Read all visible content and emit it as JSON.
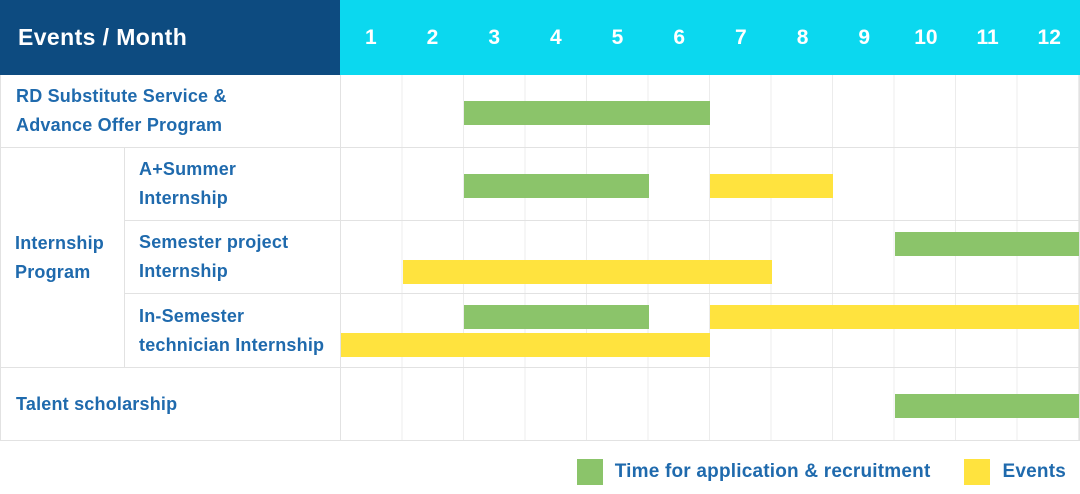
{
  "header": {
    "title": "Events / Month"
  },
  "colors": {
    "header_bg": "#0D4B80",
    "months_bg": "#0BD8EF",
    "green": "#8BC46A",
    "yellow": "#FFE33E",
    "text_blue": "#1F6AAD",
    "grid_line": "#ECECEC",
    "cell_border": "#E2E2E2"
  },
  "legend": {
    "items": [
      {
        "label": "Time for application & recruitment",
        "color_key": "green"
      },
      {
        "label": "Events",
        "color_key": "yellow"
      }
    ]
  },
  "chart_data": {
    "type": "bar",
    "subtype": "gantt-month-timeline",
    "title": "Events / Month",
    "x_axis": {
      "unit": "month",
      "ticks": [
        1,
        2,
        3,
        4,
        5,
        6,
        7,
        8,
        9,
        10,
        11,
        12
      ],
      "range": [
        1,
        12
      ]
    },
    "legend": [
      {
        "name": "Time for application & recruitment",
        "color": "#8BC46A"
      },
      {
        "name": "Events",
        "color": "#FFE33E"
      }
    ],
    "group_label": "Internship Program",
    "group_label_lines": [
      "Internship",
      "Program"
    ],
    "rows": [
      {
        "label": "RD Substitute Service & Advance Offer Program",
        "label_lines": [
          "RD Substitute Service &",
          "Advance Offer Program"
        ],
        "group": null,
        "bars": [
          {
            "series": "Time for application & recruitment",
            "color_key": "green",
            "start_month": 3,
            "end_month": 6,
            "lane": "single"
          }
        ]
      },
      {
        "label": "A+Summer Internship",
        "label_lines": [
          "A+Summer",
          "Internship"
        ],
        "group": "Internship Program",
        "bars": [
          {
            "series": "Time for application & recruitment",
            "color_key": "green",
            "start_month": 3,
            "end_month": 5,
            "lane": "single"
          },
          {
            "series": "Events",
            "color_key": "yellow",
            "start_month": 7,
            "end_month": 8,
            "lane": "single"
          }
        ]
      },
      {
        "label": "Semester project Internship",
        "label_lines": [
          "Semester project",
          "Internship"
        ],
        "group": "Internship Program",
        "bars": [
          {
            "series": "Time for application & recruitment",
            "color_key": "green",
            "start_month": 10,
            "end_month": 12,
            "lane": "top"
          },
          {
            "series": "Events",
            "color_key": "yellow",
            "start_month": 2,
            "end_month": 7,
            "lane": "bottom"
          }
        ]
      },
      {
        "label": "In-Semester technician Internship",
        "label_lines": [
          "In-Semester",
          "technician Internship"
        ],
        "group": "Internship Program",
        "bars": [
          {
            "series": "Time for application & recruitment",
            "color_key": "green",
            "start_month": 3,
            "end_month": 5,
            "lane": "top"
          },
          {
            "series": "Events",
            "color_key": "yellow",
            "start_month": 7,
            "end_month": 12,
            "lane": "top"
          },
          {
            "series": "Events",
            "color_key": "yellow",
            "start_month": 1,
            "end_month": 6,
            "lane": "bottom"
          }
        ]
      },
      {
        "label": "Talent scholarship",
        "label_lines": [
          "Talent scholarship"
        ],
        "group": null,
        "bars": [
          {
            "series": "Time for application & recruitment",
            "color_key": "green",
            "start_month": 10,
            "end_month": 12,
            "lane": "single"
          }
        ]
      }
    ]
  }
}
